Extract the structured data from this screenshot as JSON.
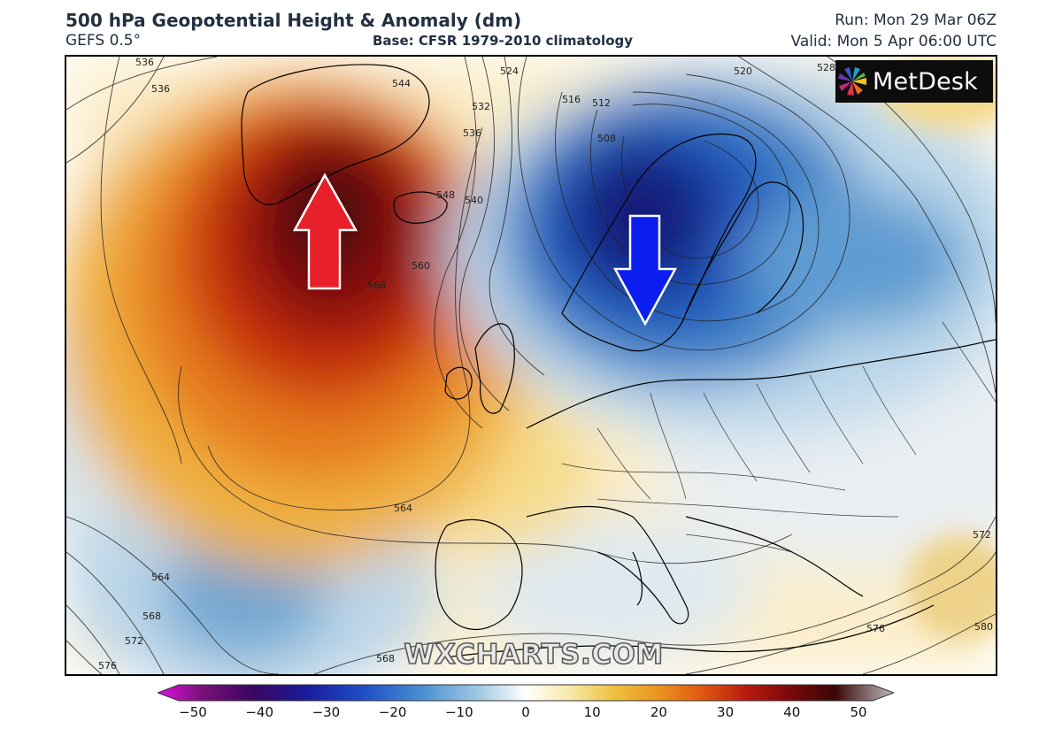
{
  "header": {
    "title": "500 hPa Geopotential Height & Anomaly (dm)",
    "model": "GEFS 0.5°",
    "base": "Base: CFSR 1979-2010 climatology",
    "run": "Run: Mon 29 Mar 06Z",
    "valid": "Valid: Mon 5 Apr 06:00 UTC"
  },
  "logo": {
    "text": "MetDesk"
  },
  "watermark": "WXCHARTS.COM",
  "arrows": [
    {
      "name": "positive-anomaly-arrow",
      "direction": "up",
      "color": "#e8202a"
    },
    {
      "name": "negative-anomaly-arrow",
      "direction": "down",
      "color": "#0b1ef0"
    }
  ],
  "contour_labels": [
    "536",
    "536",
    "544",
    "532",
    "536",
    "524",
    "520",
    "516",
    "512",
    "508",
    "540",
    "548",
    "560",
    "568",
    "564",
    "564",
    "568",
    "572",
    "576",
    "568",
    "576",
    "580",
    "572",
    "528"
  ],
  "colorbar": {
    "ticks": [
      "−50",
      "−40",
      "−30",
      "−20",
      "−10",
      "0",
      "10",
      "20",
      "30",
      "40",
      "50"
    ],
    "colors": [
      "#e010e0",
      "#7a107a",
      "#3a0660",
      "#1a1a9a",
      "#1e4fc8",
      "#4a90d0",
      "#a6cce4",
      "#ffffff",
      "#f7e9a8",
      "#efc040",
      "#e99420",
      "#e05810",
      "#b81a10",
      "#7a0808",
      "#3a0606",
      "#bdbdbd"
    ]
  }
}
